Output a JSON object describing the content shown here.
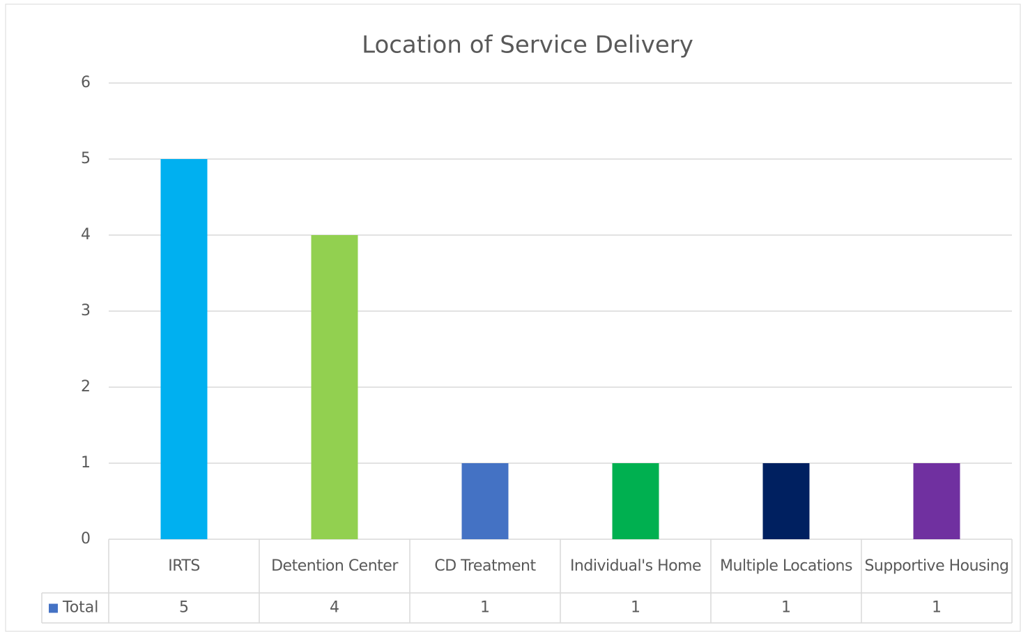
{
  "chart_data": {
    "type": "bar",
    "title": "Location of Service Delivery",
    "categories": [
      "IRTS",
      "Detention Center",
      "CD Treatment",
      "Individual's Home",
      "Multiple Locations",
      "Supportive Housing"
    ],
    "series": [
      {
        "name": "Total",
        "color": "#4472c4",
        "values": [
          5,
          4,
          1,
          1,
          1,
          1
        ],
        "point_colors": [
          "#00b0f0",
          "#92d050",
          "#4472c4",
          "#00b050",
          "#002060",
          "#7030a0"
        ]
      }
    ],
    "ylim": [
      0,
      6
    ],
    "yticks": [
      0,
      1,
      2,
      3,
      4,
      5,
      6
    ],
    "grid": true,
    "data_table": true
  }
}
